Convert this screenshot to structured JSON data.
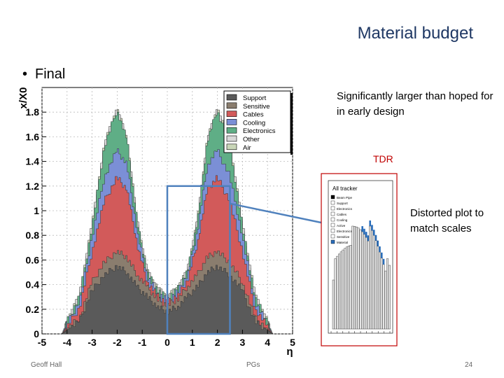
{
  "slide": {
    "title": "Material budget",
    "bullet": "Final",
    "note_design": "Significantly larger than hoped for in early design",
    "tdr_label": "TDR",
    "note_distorted": "Distorted plot to match scales",
    "footer_left": "Geoff Hall",
    "footer_center": "PGs",
    "footer_page": "24"
  },
  "chart_data": {
    "type": "area",
    "stacked": true,
    "title": "",
    "xlabel": "η",
    "ylabel": "x/X0",
    "xlim": [
      -5,
      5
    ],
    "ylim": [
      0,
      2.0
    ],
    "x_ticks": [
      "-5",
      "-4",
      "-3",
      "-2",
      "-1",
      "0",
      "1",
      "2",
      "3",
      "4",
      "5"
    ],
    "y_ticks": [
      "0",
      "0.2",
      "0.4",
      "0.6",
      "0.8",
      "1",
      "1.2",
      "1.4",
      "1.6",
      "1.8"
    ],
    "grid": true,
    "legend_position": "top-right",
    "x": [
      -4.2,
      -4.0,
      -3.5,
      -3.0,
      -2.5,
      -2.0,
      -1.6,
      -1.2,
      -0.8,
      -0.4,
      0.0,
      0.4,
      0.8,
      1.2,
      1.6,
      2.0,
      2.5,
      3.0,
      3.5,
      4.0,
      4.2
    ],
    "series": [
      {
        "name": "Support",
        "color": "#5a5a5a",
        "values": [
          0.0,
          0.03,
          0.1,
          0.35,
          0.48,
          0.55,
          0.5,
          0.38,
          0.3,
          0.22,
          0.18,
          0.22,
          0.3,
          0.38,
          0.5,
          0.55,
          0.48,
          0.35,
          0.1,
          0.03,
          0.0
        ]
      },
      {
        "name": "Sensitive",
        "color": "#8a7d6e",
        "values": [
          0.0,
          0.01,
          0.03,
          0.07,
          0.1,
          0.12,
          0.12,
          0.1,
          0.08,
          0.06,
          0.05,
          0.06,
          0.08,
          0.1,
          0.12,
          0.12,
          0.1,
          0.07,
          0.03,
          0.01,
          0.0
        ]
      },
      {
        "name": "Cables",
        "color": "#d25a5a",
        "values": [
          0.0,
          0.02,
          0.08,
          0.25,
          0.5,
          0.6,
          0.55,
          0.25,
          0.05,
          0.03,
          0.02,
          0.03,
          0.05,
          0.25,
          0.55,
          0.6,
          0.5,
          0.25,
          0.08,
          0.02,
          0.0
        ]
      },
      {
        "name": "Cooling",
        "color": "#7b8fd6",
        "values": [
          0.0,
          0.02,
          0.05,
          0.12,
          0.2,
          0.22,
          0.2,
          0.1,
          0.04,
          0.03,
          0.02,
          0.03,
          0.04,
          0.1,
          0.2,
          0.22,
          0.2,
          0.12,
          0.05,
          0.02,
          0.0
        ]
      },
      {
        "name": "Electronics",
        "color": "#5fae86",
        "values": [
          0.0,
          0.02,
          0.04,
          0.08,
          0.25,
          0.33,
          0.2,
          0.08,
          0.03,
          0.02,
          0.02,
          0.02,
          0.03,
          0.08,
          0.2,
          0.33,
          0.25,
          0.08,
          0.04,
          0.02,
          0.0
        ]
      },
      {
        "name": "Other",
        "color": "#d8d8d8",
        "values": [
          0.0,
          0.0,
          0.01,
          0.01,
          0.01,
          0.01,
          0.01,
          0.01,
          0.01,
          0.01,
          0.01,
          0.01,
          0.01,
          0.01,
          0.01,
          0.01,
          0.01,
          0.01,
          0.01,
          0.0,
          0.0
        ]
      },
      {
        "name": "Air",
        "color": "#c9d6b8",
        "values": [
          0.0,
          0.0,
          0.0,
          0.0,
          0.0,
          0.0,
          0.0,
          0.0,
          0.0,
          0.0,
          0.0,
          0.0,
          0.0,
          0.0,
          0.0,
          0.0,
          0.0,
          0.0,
          0.0,
          0.0,
          0.0
        ]
      }
    ],
    "highlight_box": {
      "x_range": [
        0.0,
        2.5
      ],
      "y_range": [
        0.0,
        1.2
      ],
      "color": "#4f81bd"
    },
    "inset": {
      "legend_title": "All tracker",
      "legend_entries": [
        "Beam Pipe",
        "Support",
        "Electronics",
        "Cables",
        "Cooling",
        "Active",
        "Electronics",
        "Sensitive",
        "Material"
      ],
      "frame_color": "#c00000"
    }
  }
}
